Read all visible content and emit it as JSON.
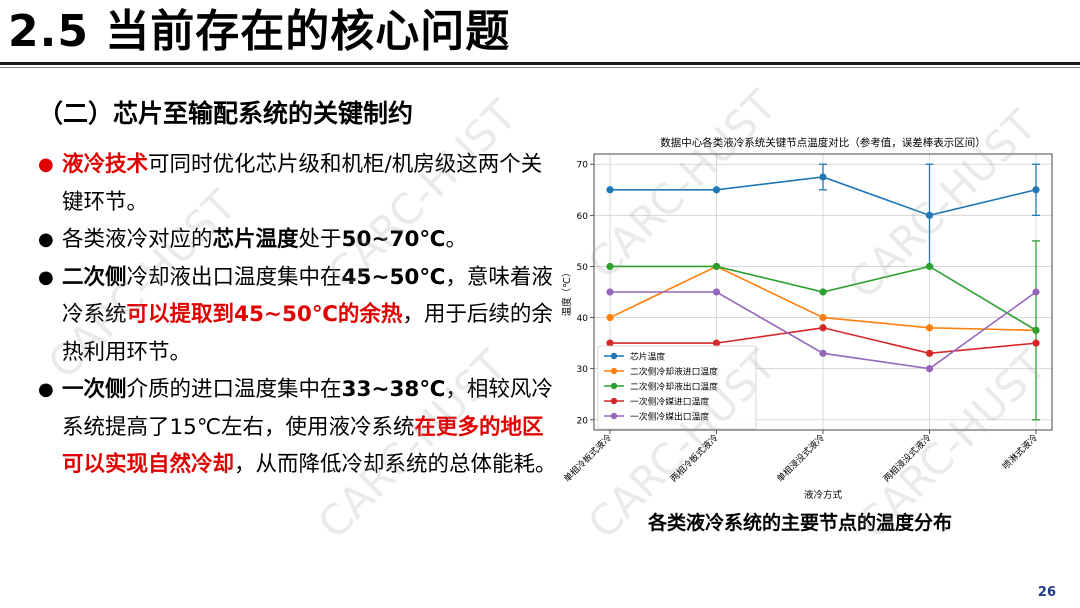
{
  "slide": {
    "title": "2.5 当前存在的核心问题",
    "subtitle": "（二）芯片至输配系统的关键制约",
    "page_number": "26",
    "watermark": "CARC-HUST"
  },
  "bullets": [
    {
      "parts": [
        {
          "t": "液冷技术",
          "s": "r"
        },
        {
          "t": "可同时优化芯片级和机柜/机房级这两个关键环节。",
          "s": ""
        }
      ]
    },
    {
      "parts": [
        {
          "t": "各类液冷对应的",
          "s": ""
        },
        {
          "t": "芯片温度",
          "s": "b"
        },
        {
          "t": "处于",
          "s": ""
        },
        {
          "t": "50~70℃",
          "s": "b"
        },
        {
          "t": "。",
          "s": ""
        }
      ]
    },
    {
      "parts": [
        {
          "t": "二次侧",
          "s": "b"
        },
        {
          "t": "冷却液出口温度集中在",
          "s": ""
        },
        {
          "t": "45~50℃",
          "s": "b"
        },
        {
          "t": "，意味着液冷系统",
          "s": ""
        },
        {
          "t": "可以提取到45~50℃的余热",
          "s": "r"
        },
        {
          "t": "，用于后续的余热利用环节。",
          "s": ""
        }
      ]
    },
    {
      "parts": [
        {
          "t": "一次侧",
          "s": "b"
        },
        {
          "t": "介质的进口温度集中在",
          "s": ""
        },
        {
          "t": "33~38℃",
          "s": "b"
        },
        {
          "t": "，相较风冷系统提高了15℃左右，使用液冷系统",
          "s": ""
        },
        {
          "t": "在更多的地区可以实现自然冷却",
          "s": "r"
        },
        {
          "t": "，从而降低冷却系统的总体能耗。",
          "s": ""
        }
      ]
    }
  ],
  "chart_caption": "各类液冷系统的主要节点的温度分布",
  "chart_data": {
    "type": "line",
    "title": "数据中心各类液冷系统关键节点温度对比（参考值，误差棒表示区间）",
    "xlabel": "液冷方式",
    "ylabel": "温度（℃）",
    "ylim": [
      18,
      72
    ],
    "yticks": [
      20,
      30,
      40,
      50,
      60,
      70
    ],
    "grid": true,
    "legend_position": "lower-left",
    "categories": [
      "单相冷板式液冷",
      "两相冷板式液冷",
      "单相浸没式液冷",
      "两相浸没式液冷",
      "喷淋式液冷"
    ],
    "series": [
      {
        "name": "芯片温度",
        "color": "#1f77b4",
        "values": [
          65,
          65,
          67.5,
          60,
          65
        ],
        "err_low": [
          null,
          null,
          65,
          50,
          60
        ],
        "err_high": [
          null,
          null,
          70,
          70,
          70
        ]
      },
      {
        "name": "二次侧冷却液进口温度",
        "color": "#ff7f0e",
        "values": [
          40,
          50,
          40,
          38,
          37.5
        ],
        "err_low": [
          null,
          null,
          null,
          null,
          null
        ],
        "err_high": [
          null,
          null,
          null,
          null,
          null
        ]
      },
      {
        "name": "二次侧冷却液出口温度",
        "color": "#2ca02c",
        "values": [
          50,
          50,
          45,
          50,
          37.5
        ],
        "err_low": [
          null,
          null,
          null,
          null,
          20
        ],
        "err_high": [
          null,
          null,
          null,
          null,
          55
        ]
      },
      {
        "name": "一次侧冷媒进口温度",
        "color": "#d62728",
        "values": [
          35,
          35,
          38,
          33,
          35
        ],
        "err_low": [
          null,
          null,
          null,
          null,
          null
        ],
        "err_high": [
          null,
          null,
          null,
          null,
          null
        ]
      },
      {
        "name": "一次侧冷媒出口温度",
        "color": "#9467bd",
        "values": [
          45,
          45,
          33,
          30,
          45
        ],
        "err_low": [
          null,
          null,
          null,
          null,
          null
        ],
        "err_high": [
          null,
          null,
          null,
          null,
          null
        ]
      }
    ]
  }
}
